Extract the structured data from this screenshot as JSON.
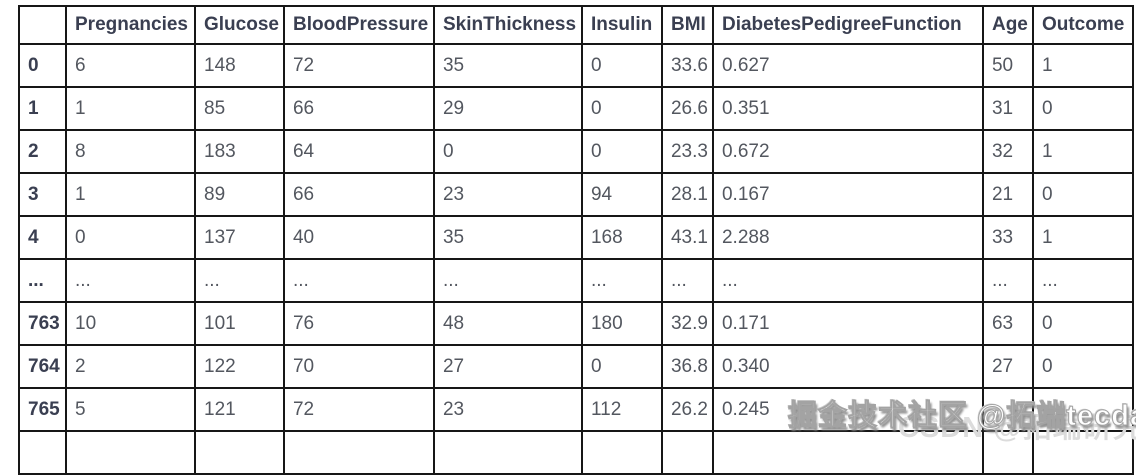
{
  "table": {
    "index_header": "",
    "columns": [
      "Pregnancies",
      "Glucose",
      "BloodPressure",
      "SkinThickness",
      "Insulin",
      "BMI",
      "DiabetesPedigreeFunction",
      "Age",
      "Outcome"
    ],
    "rows": [
      {
        "index": "0",
        "cells": [
          "6",
          "148",
          "72",
          "35",
          "0",
          "33.6",
          "0.627",
          "50",
          "1"
        ]
      },
      {
        "index": "1",
        "cells": [
          "1",
          "85",
          "66",
          "29",
          "0",
          "26.6",
          "0.351",
          "31",
          "0"
        ]
      },
      {
        "index": "2",
        "cells": [
          "8",
          "183",
          "64",
          "0",
          "0",
          "23.3",
          "0.672",
          "32",
          "1"
        ]
      },
      {
        "index": "3",
        "cells": [
          "1",
          "89",
          "66",
          "23",
          "94",
          "28.1",
          "0.167",
          "21",
          "0"
        ]
      },
      {
        "index": "4",
        "cells": [
          "0",
          "137",
          "40",
          "35",
          "168",
          "43.1",
          "2.288",
          "33",
          "1"
        ]
      },
      {
        "index": "...",
        "cells": [
          "...",
          "...",
          "...",
          "...",
          "...",
          "...",
          "...",
          "...",
          "..."
        ]
      },
      {
        "index": "763",
        "cells": [
          "10",
          "101",
          "76",
          "48",
          "180",
          "32.9",
          "0.171",
          "63",
          "0"
        ]
      },
      {
        "index": "764",
        "cells": [
          "2",
          "122",
          "70",
          "27",
          "0",
          "36.8",
          "0.340",
          "27",
          "0"
        ]
      },
      {
        "index": "765",
        "cells": [
          "5",
          "121",
          "72",
          "23",
          "112",
          "26.2",
          "0.245",
          "",
          ""
        ]
      }
    ]
  },
  "watermark": {
    "main": "掘金技术社区 @拓端tecdat",
    "secondary": "CSDN @拓端研究室"
  },
  "colors": {
    "header_text": "#3a3f51",
    "cell_text": "#53575f",
    "border": "#161616",
    "watermark_fill": "#ffffff",
    "watermark_shadow": "#8d8d8d",
    "watermark_secondary_text": "#dcdcdc"
  }
}
